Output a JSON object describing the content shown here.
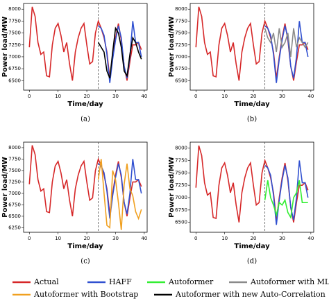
{
  "chart_data": [
    {
      "type": "line",
      "caption": "(a)",
      "xlabel": "Time/day",
      "ylabel": "Power load/MW",
      "xlim": [
        -2,
        41
      ],
      "xticks": [
        0,
        10,
        20,
        30,
        40
      ],
      "ylim": [
        6300,
        8120
      ],
      "yticks": [
        6500,
        6750,
        7000,
        7250,
        7500,
        7750,
        8000
      ],
      "vline": 24,
      "x": [
        0,
        1,
        2,
        3,
        4,
        5,
        6,
        7,
        8,
        9,
        10,
        11,
        12,
        13,
        14,
        15,
        16,
        17,
        18,
        19,
        20,
        21,
        22,
        23,
        24,
        25,
        26,
        27,
        28,
        29,
        30,
        31,
        32,
        33,
        34,
        35,
        36,
        37,
        38,
        39
      ],
      "series": [
        {
          "name": "Actual",
          "color": "#d62728",
          "values": [
            7200,
            8050,
            7850,
            7300,
            7050,
            7100,
            6600,
            6580,
            7250,
            7600,
            7700,
            7450,
            7100,
            7300,
            6850,
            6500,
            7100,
            7400,
            7600,
            7700,
            7250,
            6850,
            6900,
            7500,
            7750,
            7600,
            7400,
            7100,
            6550,
            7000,
            7400,
            7700,
            7350,
            6800,
            6500,
            6900,
            7250,
            7250,
            7300,
            7150
          ]
        },
        {
          "name": "HAFF",
          "color": "#3050d0",
          "values": [
            null,
            null,
            null,
            null,
            null,
            null,
            null,
            null,
            null,
            null,
            null,
            null,
            null,
            null,
            null,
            null,
            null,
            null,
            null,
            null,
            null,
            null,
            null,
            null,
            7650,
            7600,
            7450,
            7050,
            6450,
            6950,
            7350,
            7650,
            7400,
            6800,
            6550,
            7000,
            7750,
            7300,
            7300,
            7000
          ]
        },
        {
          "name": "Autoformer with new Auto-Correlation",
          "color": "#000000",
          "values": [
            null,
            null,
            null,
            null,
            null,
            null,
            null,
            null,
            null,
            null,
            null,
            null,
            null,
            null,
            null,
            null,
            null,
            null,
            null,
            null,
            null,
            null,
            null,
            null,
            7300,
            7200,
            7100,
            6700,
            6550,
            7100,
            7600,
            7500,
            7200,
            6700,
            6600,
            7050,
            7400,
            7300,
            7100,
            6950
          ]
        }
      ]
    },
    {
      "type": "line",
      "caption": "(b)",
      "xlabel": "Time/day",
      "ylabel": "Power load/MW",
      "xlim": [
        -2,
        41
      ],
      "xticks": [
        0,
        10,
        20,
        30,
        40
      ],
      "ylim": [
        6300,
        8120
      ],
      "yticks": [
        6500,
        6750,
        7000,
        7250,
        7500,
        7750,
        8000
      ],
      "vline": 24,
      "x": [
        0,
        1,
        2,
        3,
        4,
        5,
        6,
        7,
        8,
        9,
        10,
        11,
        12,
        13,
        14,
        15,
        16,
        17,
        18,
        19,
        20,
        21,
        22,
        23,
        24,
        25,
        26,
        27,
        28,
        29,
        30,
        31,
        32,
        33,
        34,
        35,
        36,
        37,
        38,
        39
      ],
      "series": [
        {
          "name": "Actual",
          "color": "#d62728",
          "values": [
            7200,
            8050,
            7850,
            7300,
            7050,
            7100,
            6600,
            6580,
            7250,
            7600,
            7700,
            7450,
            7100,
            7300,
            6850,
            6500,
            7100,
            7400,
            7600,
            7700,
            7250,
            6850,
            6900,
            7500,
            7750,
            7600,
            7400,
            7100,
            6550,
            7000,
            7400,
            7700,
            7350,
            6800,
            6500,
            6900,
            7250,
            7250,
            7300,
            7150
          ]
        },
        {
          "name": "HAFF",
          "color": "#3050d0",
          "values": [
            null,
            null,
            null,
            null,
            null,
            null,
            null,
            null,
            null,
            null,
            null,
            null,
            null,
            null,
            null,
            null,
            null,
            null,
            null,
            null,
            null,
            null,
            null,
            null,
            7650,
            7600,
            7450,
            7050,
            6450,
            6950,
            7350,
            7650,
            7400,
            6800,
            6550,
            7000,
            7750,
            7300,
            7300,
            7000
          ]
        },
        {
          "name": "Autoformer with MLR",
          "color": "#8a8a8a",
          "values": [
            null,
            null,
            null,
            null,
            null,
            null,
            null,
            null,
            null,
            null,
            null,
            null,
            null,
            null,
            null,
            null,
            null,
            null,
            null,
            null,
            null,
            null,
            null,
            null,
            7600,
            7400,
            7300,
            7500,
            7100,
            7600,
            7200,
            7300,
            7500,
            7000,
            7600,
            7200,
            7400,
            7300,
            7200,
            7300
          ]
        }
      ]
    },
    {
      "type": "line",
      "caption": "(c)",
      "xlabel": "Time/day",
      "ylabel": "Power load/MW",
      "xlim": [
        -2,
        41
      ],
      "xticks": [
        0,
        10,
        20,
        30,
        40
      ],
      "ylim": [
        6150,
        8120
      ],
      "yticks": [
        6250,
        6500,
        6750,
        7000,
        7250,
        7500,
        7750,
        8000
      ],
      "vline": 24,
      "x": [
        0,
        1,
        2,
        3,
        4,
        5,
        6,
        7,
        8,
        9,
        10,
        11,
        12,
        13,
        14,
        15,
        16,
        17,
        18,
        19,
        20,
        21,
        22,
        23,
        24,
        25,
        26,
        27,
        28,
        29,
        30,
        31,
        32,
        33,
        34,
        35,
        36,
        37,
        38,
        39
      ],
      "series": [
        {
          "name": "Actual",
          "color": "#d62728",
          "values": [
            7200,
            8050,
            7850,
            7300,
            7050,
            7100,
            6600,
            6580,
            7250,
            7600,
            7700,
            7450,
            7100,
            7300,
            6850,
            6500,
            7100,
            7400,
            7600,
            7700,
            7250,
            6850,
            6900,
            7500,
            7750,
            7600,
            7400,
            7100,
            6550,
            7000,
            7400,
            7700,
            7350,
            6800,
            6500,
            6900,
            7250,
            7250,
            7300,
            7150
          ]
        },
        {
          "name": "HAFF",
          "color": "#3050d0",
          "values": [
            null,
            null,
            null,
            null,
            null,
            null,
            null,
            null,
            null,
            null,
            null,
            null,
            null,
            null,
            null,
            null,
            null,
            null,
            null,
            null,
            null,
            null,
            null,
            null,
            7650,
            7600,
            7450,
            7050,
            6450,
            6950,
            7350,
            7650,
            7400,
            6800,
            6550,
            7000,
            7750,
            7300,
            7300,
            7000
          ]
        },
        {
          "name": "Autoformer with Bootstrap",
          "color": "#f0a020",
          "values": [
            null,
            null,
            null,
            null,
            null,
            null,
            null,
            null,
            null,
            null,
            null,
            null,
            null,
            null,
            null,
            null,
            null,
            null,
            null,
            null,
            null,
            null,
            null,
            null,
            7300,
            7750,
            7000,
            6300,
            6250,
            7500,
            7300,
            6800,
            6200,
            7200,
            7650,
            7100,
            6950,
            6600,
            6450,
            6650
          ]
        }
      ]
    },
    {
      "type": "line",
      "caption": "(d)",
      "xlabel": "Time/day",
      "ylabel": "Power load/MW",
      "xlim": [
        -2,
        41
      ],
      "xticks": [
        0,
        10,
        20,
        30,
        40
      ],
      "ylim": [
        6300,
        8120
      ],
      "yticks": [
        6500,
        6750,
        7000,
        7250,
        7500,
        7750,
        8000
      ],
      "vline": 24,
      "x": [
        0,
        1,
        2,
        3,
        4,
        5,
        6,
        7,
        8,
        9,
        10,
        11,
        12,
        13,
        14,
        15,
        16,
        17,
        18,
        19,
        20,
        21,
        22,
        23,
        24,
        25,
        26,
        27,
        28,
        29,
        30,
        31,
        32,
        33,
        34,
        35,
        36,
        37,
        38,
        39
      ],
      "series": [
        {
          "name": "Actual",
          "color": "#d62728",
          "values": [
            7200,
            8050,
            7850,
            7300,
            7050,
            7100,
            6600,
            6580,
            7250,
            7600,
            7700,
            7450,
            7100,
            7300,
            6850,
            6500,
            7100,
            7400,
            7600,
            7700,
            7250,
            6850,
            6900,
            7500,
            7750,
            7600,
            7400,
            7100,
            6550,
            7000,
            7400,
            7700,
            7350,
            6800,
            6500,
            6900,
            7250,
            7250,
            7300,
            7150
          ]
        },
        {
          "name": "HAFF",
          "color": "#3050d0",
          "values": [
            null,
            null,
            null,
            null,
            null,
            null,
            null,
            null,
            null,
            null,
            null,
            null,
            null,
            null,
            null,
            null,
            null,
            null,
            null,
            null,
            null,
            null,
            null,
            null,
            7650,
            7600,
            7450,
            7050,
            6450,
            6950,
            7350,
            7650,
            7400,
            6800,
            6550,
            7000,
            7750,
            7300,
            7300,
            7000
          ]
        },
        {
          "name": "Autoformer",
          "color": "#33ee33",
          "values": [
            null,
            null,
            null,
            null,
            null,
            null,
            null,
            null,
            null,
            null,
            null,
            null,
            null,
            null,
            null,
            null,
            null,
            null,
            null,
            null,
            null,
            null,
            null,
            null,
            6950,
            7350,
            7000,
            6850,
            6650,
            6900,
            6850,
            6950,
            6700,
            6600,
            7000,
            7100,
            7350,
            6900,
            6900,
            6900
          ]
        }
      ]
    }
  ]
}
